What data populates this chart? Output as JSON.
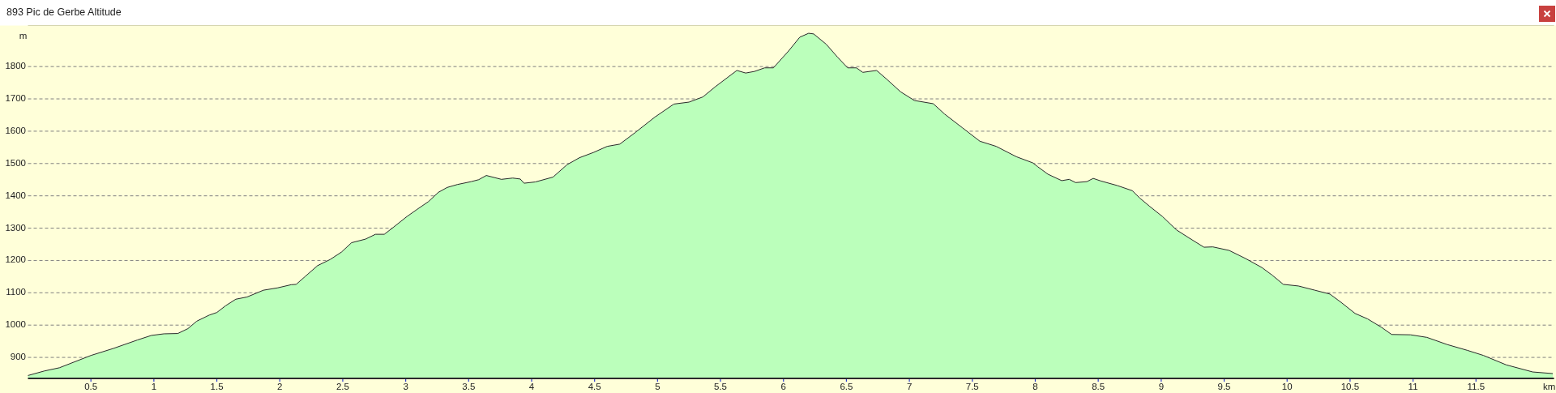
{
  "chart_data": {
    "type": "area",
    "title": "893 Pic de Gerbe Altitude",
    "xlabel": "km",
    "ylabel": "m",
    "x": [
      0,
      0.13,
      0.25,
      0.5,
      0.68,
      0.87,
      0.98,
      1.08,
      1.19,
      1.27,
      1.34,
      1.44,
      1.5,
      1.57,
      1.65,
      1.74,
      1.87,
      1.98,
      2.09,
      2.13,
      2.2,
      2.3,
      2.4,
      2.49,
      2.57,
      2.68,
      2.76,
      2.83,
      2.9,
      3.01,
      3.09,
      3.18,
      3.26,
      3.33,
      3.41,
      3.52,
      3.58,
      3.64,
      3.76,
      3.85,
      3.91,
      3.94,
      4.03,
      4.17,
      4.28,
      4.38,
      4.49,
      4.6,
      4.7,
      4.82,
      4.98,
      5.13,
      5.25,
      5.36,
      5.46,
      5.63,
      5.7,
      5.77,
      5.85,
      5.92,
      6.04,
      6.13,
      6.2,
      6.24,
      6.34,
      6.43,
      6.51,
      6.58,
      6.63,
      6.74,
      6.82,
      6.93,
      7.04,
      7.19,
      7.28,
      7.42,
      7.56,
      7.69,
      7.85,
      7.98,
      8.02,
      8.1,
      8.21,
      8.27,
      8.32,
      8.41,
      8.46,
      8.52,
      8.65,
      8.77,
      8.83,
      8.91,
      9.01,
      9.12,
      9.22,
      9.34,
      9.41,
      9.54,
      9.67,
      9.8,
      9.88,
      9.97,
      10.09,
      10.22,
      10.34,
      10.43,
      10.54,
      10.64,
      10.75,
      10.83,
      10.98,
      11.11,
      11.27,
      11.43,
      11.56,
      11.74,
      11.95,
      12.11
    ],
    "values": [
      844,
      858,
      868,
      906,
      928,
      954,
      968,
      973,
      974,
      989,
      1012,
      1031,
      1039,
      1060,
      1080,
      1087,
      1108,
      1115,
      1125,
      1126,
      1150,
      1184,
      1203,
      1226,
      1255,
      1266,
      1281,
      1281,
      1302,
      1336,
      1358,
      1382,
      1411,
      1426,
      1435,
      1444,
      1450,
      1463,
      1451,
      1455,
      1452,
      1439,
      1443,
      1458,
      1496,
      1518,
      1534,
      1553,
      1560,
      1595,
      1644,
      1684,
      1690,
      1706,
      1738,
      1788,
      1780,
      1785,
      1796,
      1796,
      1848,
      1891,
      1903,
      1901,
      1869,
      1829,
      1796,
      1796,
      1782,
      1788,
      1761,
      1722,
      1695,
      1685,
      1653,
      1611,
      1569,
      1553,
      1521,
      1502,
      1490,
      1467,
      1447,
      1451,
      1441,
      1444,
      1454,
      1446,
      1432,
      1416,
      1393,
      1367,
      1336,
      1295,
      1270,
      1241,
      1242,
      1231,
      1206,
      1178,
      1155,
      1126,
      1121,
      1108,
      1096,
      1070,
      1036,
      1019,
      993,
      971,
      970,
      962,
      940,
      922,
      906,
      877,
      855,
      850
    ],
    "color": "#bbffbb",
    "xlim": [
      0,
      12.12
    ],
    "ylim": [
      835,
      1927
    ],
    "xticks": [
      0.5,
      1,
      1.5,
      2,
      2.5,
      3,
      3.5,
      4,
      4.5,
      5,
      5.5,
      6,
      6.5,
      7,
      7.5,
      8,
      8.5,
      9,
      9.5,
      10,
      10.5,
      11,
      11.5
    ],
    "yticks": [
      900,
      1000,
      1100,
      1200,
      1300,
      1400,
      1500,
      1600,
      1700,
      1800
    ],
    "grid": "y"
  }
}
